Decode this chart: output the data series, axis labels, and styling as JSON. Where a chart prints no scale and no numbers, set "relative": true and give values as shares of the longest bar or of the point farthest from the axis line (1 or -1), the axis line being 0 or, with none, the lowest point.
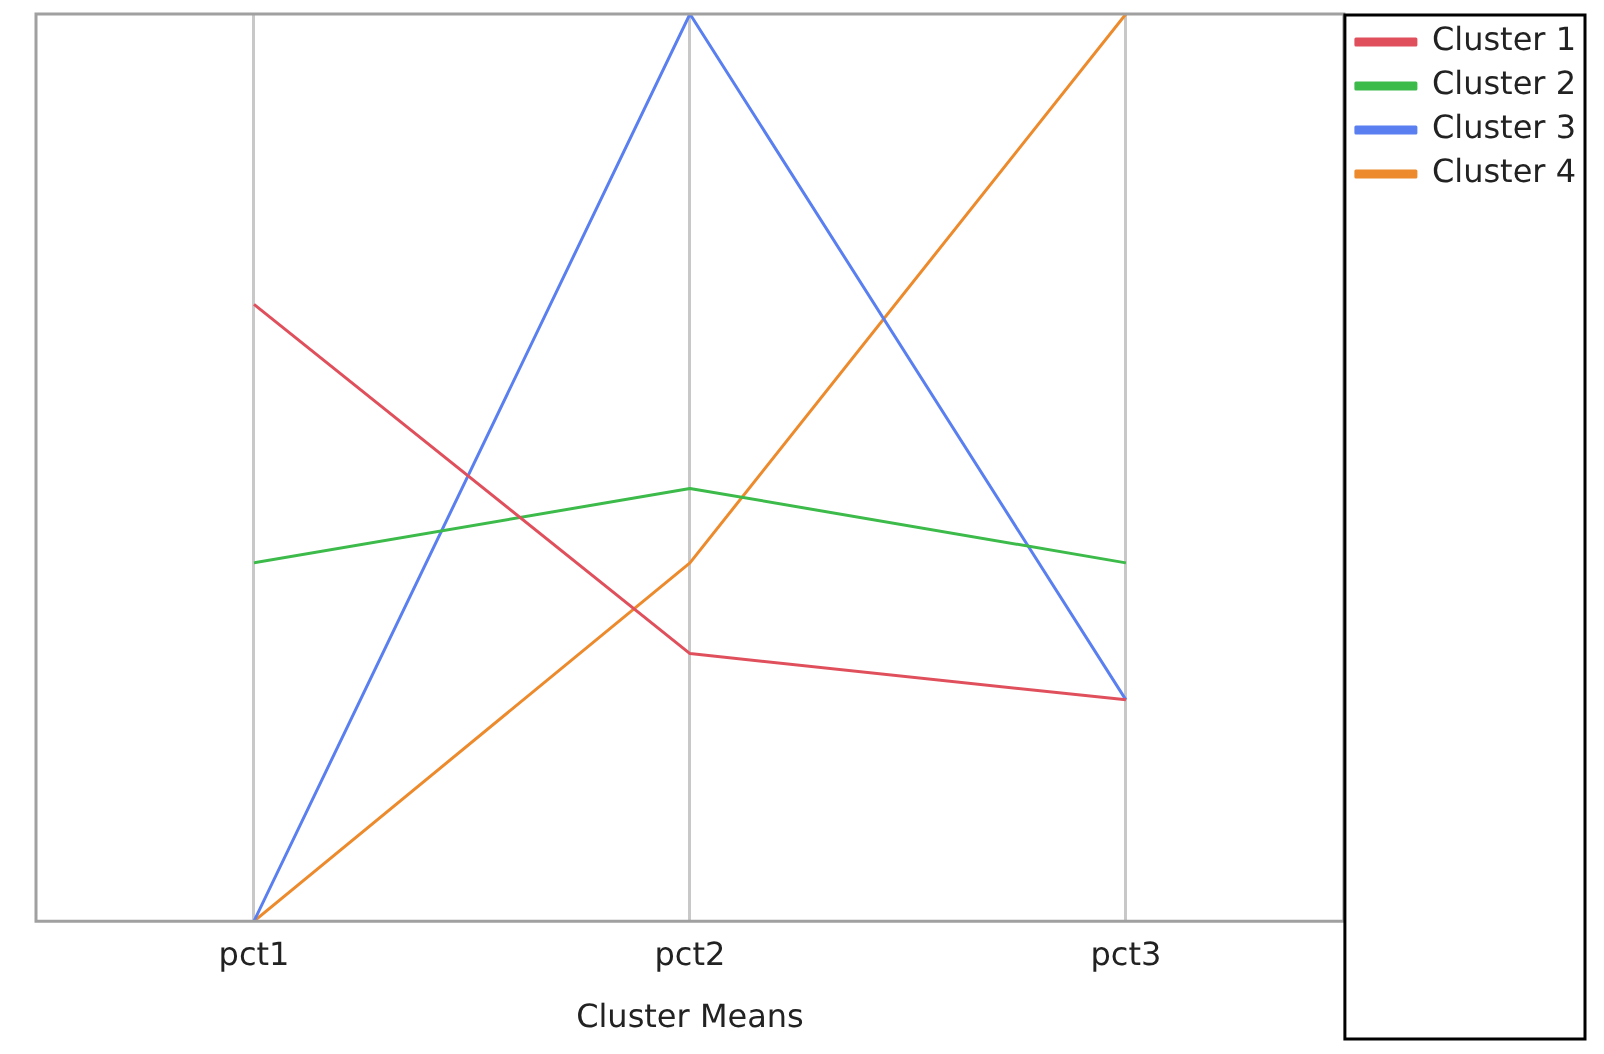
{
  "chart_data": {
    "type": "line",
    "xlabel": "Cluster Means",
    "categories": [
      "pct1",
      "pct2",
      "pct3"
    ],
    "relative": true,
    "grid": "x",
    "legend": "right",
    "marker": "none",
    "series": [
      {
        "name": "Cluster 1",
        "color": "#e0505c",
        "values": [
          0.68,
          0.295,
          0.244
        ]
      },
      {
        "name": "Cluster 2",
        "color": "#3cba4a",
        "values": [
          0.395,
          0.477,
          0.395
        ]
      },
      {
        "name": "Cluster 3",
        "color": "#5a7ff0",
        "values": [
          0,
          1,
          0.244
        ]
      },
      {
        "name": "Cluster 4",
        "color": "#ec8a2c",
        "values": [
          0,
          0.395,
          1
        ]
      }
    ]
  }
}
